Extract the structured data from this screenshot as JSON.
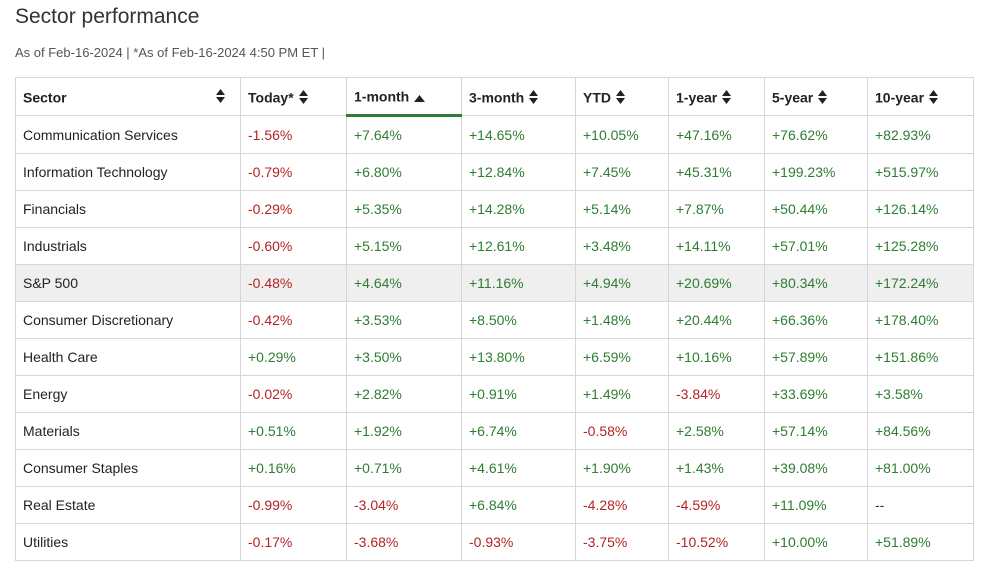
{
  "title": "Sector performance",
  "subtitle": "As of Feb-16-2024 | *As of Feb-16-2024 4:50 PM ET |",
  "colors": {
    "negative": "#b32424",
    "positive": "#2e7d32",
    "active_sort": "#2e7d32",
    "highlight_row": "#efefef"
  },
  "columns": [
    {
      "label": "Sector",
      "sort_icon": "sort-both-icon"
    },
    {
      "label": "Today*",
      "sort_icon": "sort-both-icon"
    },
    {
      "label": "1-month",
      "sort_icon": "sort-ascending-icon",
      "active": true
    },
    {
      "label": "3-month",
      "sort_icon": "sort-both-icon"
    },
    {
      "label": "YTD",
      "sort_icon": "sort-both-icon"
    },
    {
      "label": "1-year",
      "sort_icon": "sort-both-icon"
    },
    {
      "label": "5-year",
      "sort_icon": "sort-both-icon"
    },
    {
      "label": "10-year",
      "sort_icon": "sort-both-icon"
    }
  ],
  "rows": [
    {
      "sector": "Communication Services",
      "values": [
        "-1.56%",
        "+7.64%",
        "+14.65%",
        "+10.05%",
        "+47.16%",
        "+76.62%",
        "+82.93%"
      ]
    },
    {
      "sector": "Information Technology",
      "values": [
        "-0.79%",
        "+6.80%",
        "+12.84%",
        "+7.45%",
        "+45.31%",
        "+199.23%",
        "+515.97%"
      ]
    },
    {
      "sector": "Financials",
      "values": [
        "-0.29%",
        "+5.35%",
        "+14.28%",
        "+5.14%",
        "+7.87%",
        "+50.44%",
        "+126.14%"
      ]
    },
    {
      "sector": "Industrials",
      "values": [
        "-0.60%",
        "+5.15%",
        "+12.61%",
        "+3.48%",
        "+14.11%",
        "+57.01%",
        "+125.28%"
      ]
    },
    {
      "sector": "S&P 500",
      "highlight": true,
      "values": [
        "-0.48%",
        "+4.64%",
        "+11.16%",
        "+4.94%",
        "+20.69%",
        "+80.34%",
        "+172.24%"
      ]
    },
    {
      "sector": "Consumer Discretionary",
      "values": [
        "-0.42%",
        "+3.53%",
        "+8.50%",
        "+1.48%",
        "+20.44%",
        "+66.36%",
        "+178.40%"
      ]
    },
    {
      "sector": "Health Care",
      "values": [
        "+0.29%",
        "+3.50%",
        "+13.80%",
        "+6.59%",
        "+10.16%",
        "+57.89%",
        "+151.86%"
      ]
    },
    {
      "sector": "Energy",
      "values": [
        "-0.02%",
        "+2.82%",
        "+0.91%",
        "+1.49%",
        "-3.84%",
        "+33.69%",
        "+3.58%"
      ]
    },
    {
      "sector": "Materials",
      "values": [
        "+0.51%",
        "+1.92%",
        "+6.74%",
        "-0.58%",
        "+2.58%",
        "+57.14%",
        "+84.56%"
      ]
    },
    {
      "sector": "Consumer Staples",
      "values": [
        "+0.16%",
        "+0.71%",
        "+4.61%",
        "+1.90%",
        "+1.43%",
        "+39.08%",
        "+81.00%"
      ]
    },
    {
      "sector": "Real Estate",
      "values": [
        "-0.99%",
        "-3.04%",
        "+6.84%",
        "-4.28%",
        "-4.59%",
        "+11.09%",
        "--"
      ]
    },
    {
      "sector": "Utilities",
      "values": [
        "-0.17%",
        "-3.68%",
        "-0.93%",
        "-3.75%",
        "-10.52%",
        "+10.00%",
        "+51.89%"
      ]
    }
  ]
}
